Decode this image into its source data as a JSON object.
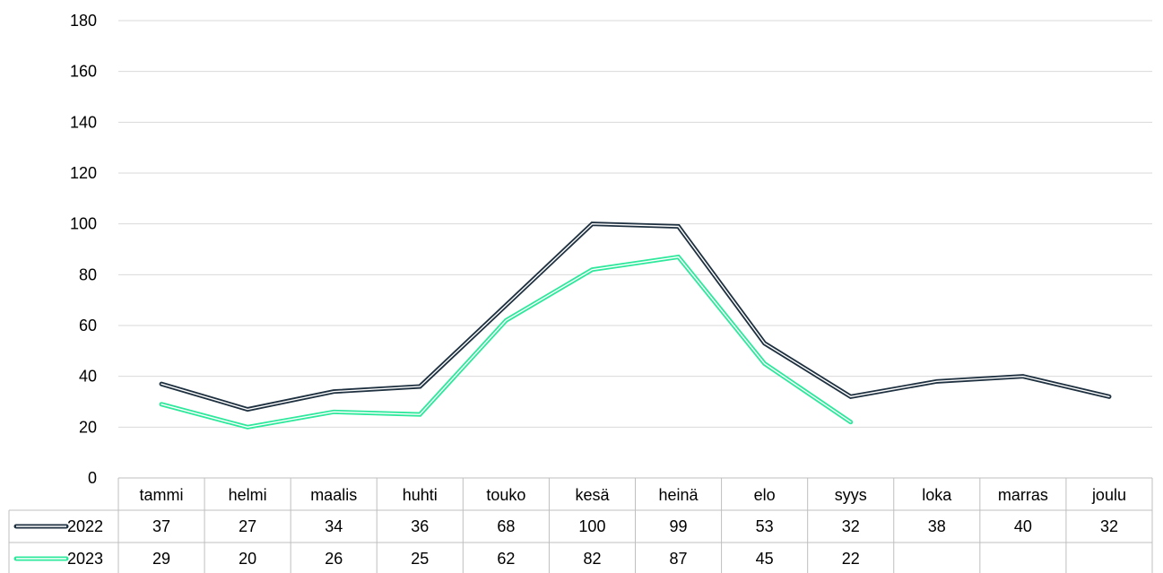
{
  "colors": {
    "series_2022": "#1f3140",
    "series_2023": "#2ee89c",
    "gridline": "#d9d9d9",
    "table_border": "#bfbfbf"
  },
  "chart_data": {
    "type": "line",
    "title": "",
    "xlabel": "",
    "ylabel": "",
    "ylim": [
      0,
      180
    ],
    "yticks": [
      0,
      20,
      40,
      60,
      80,
      100,
      120,
      140,
      160,
      180
    ],
    "grid": true,
    "legend": "data-table-left",
    "data_table": true,
    "categories": [
      "tammi",
      "helmi",
      "maalis",
      "huhti",
      "touko",
      "kesä",
      "heinä",
      "elo",
      "syys",
      "loka",
      "marras",
      "joulu"
    ],
    "series": [
      {
        "name": "2022",
        "color": "#1f3140",
        "values": [
          37,
          27,
          34,
          36,
          68,
          100,
          99,
          53,
          32,
          38,
          40,
          32
        ]
      },
      {
        "name": "2023",
        "color": "#2ee89c",
        "values": [
          29,
          20,
          26,
          25,
          62,
          82,
          87,
          45,
          22,
          null,
          null,
          null
        ]
      }
    ]
  }
}
